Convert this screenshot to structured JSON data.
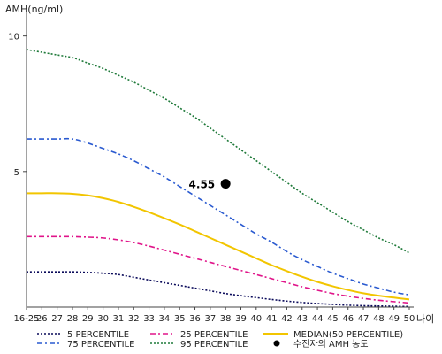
{
  "chart_data": {
    "type": "line",
    "title": "",
    "ylabel": "AMH(ng/ml)",
    "xlabel": "나이",
    "ylim": [
      0,
      11
    ],
    "yticks": [
      5,
      10
    ],
    "grid": false,
    "legend_position": "bottom",
    "categories": [
      "16-25",
      "26",
      "27",
      "28",
      "29",
      "30",
      "31",
      "32",
      "33",
      "34",
      "35",
      "36",
      "37",
      "38",
      "39",
      "40",
      "41",
      "42",
      "43",
      "44",
      "45",
      "46",
      "47",
      "48",
      "49",
      "50"
    ],
    "series": [
      {
        "name": "5 PERCENTILE",
        "color": "#0a0a5a",
        "style": "dotted",
        "values": [
          1.3,
          1.3,
          1.3,
          1.3,
          1.28,
          1.25,
          1.2,
          1.1,
          1.0,
          0.9,
          0.8,
          0.7,
          0.6,
          0.5,
          0.42,
          0.35,
          0.28,
          0.22,
          0.17,
          0.13,
          0.1,
          0.07,
          0.05,
          0.04,
          0.03,
          0.02
        ]
      },
      {
        "name": "25 PERCENTILE",
        "color": "#e0158a",
        "style": "dashdot",
        "values": [
          2.6,
          2.6,
          2.6,
          2.6,
          2.58,
          2.55,
          2.48,
          2.38,
          2.25,
          2.1,
          1.95,
          1.8,
          1.65,
          1.5,
          1.35,
          1.2,
          1.05,
          0.9,
          0.75,
          0.62,
          0.5,
          0.4,
          0.32,
          0.25,
          0.2,
          0.15
        ]
      },
      {
        "name": "MEDIAN(50 PERCENTILE)",
        "color": "#f2c500",
        "style": "solid",
        "values": [
          4.2,
          4.2,
          4.2,
          4.18,
          4.12,
          4.02,
          3.88,
          3.7,
          3.5,
          3.28,
          3.05,
          2.8,
          2.55,
          2.3,
          2.05,
          1.8,
          1.55,
          1.33,
          1.12,
          0.93,
          0.77,
          0.63,
          0.51,
          0.42,
          0.35,
          0.28
        ]
      },
      {
        "name": "75 PERCENTILE",
        "color": "#2a5ad0",
        "style": "dashdot",
        "values": [
          6.2,
          6.2,
          6.2,
          6.2,
          6.05,
          5.85,
          5.65,
          5.4,
          5.1,
          4.8,
          4.45,
          4.1,
          3.75,
          3.4,
          3.05,
          2.7,
          2.4,
          2.05,
          1.75,
          1.5,
          1.25,
          1.05,
          0.85,
          0.7,
          0.55,
          0.45
        ]
      },
      {
        "name": "95 PERCENTILE",
        "color": "#1f7a3a",
        "style": "dotted",
        "values": [
          9.5,
          9.4,
          9.3,
          9.2,
          9.0,
          8.8,
          8.55,
          8.3,
          8.0,
          7.7,
          7.35,
          7.0,
          6.6,
          6.2,
          5.8,
          5.4,
          5.0,
          4.6,
          4.2,
          3.85,
          3.5,
          3.15,
          2.85,
          2.55,
          2.3,
          2.0
        ]
      }
    ],
    "marker": {
      "name": "수진자의 AMH 농도",
      "x": "38",
      "y": 4.55,
      "label": "4.55",
      "color": "#000000"
    }
  }
}
